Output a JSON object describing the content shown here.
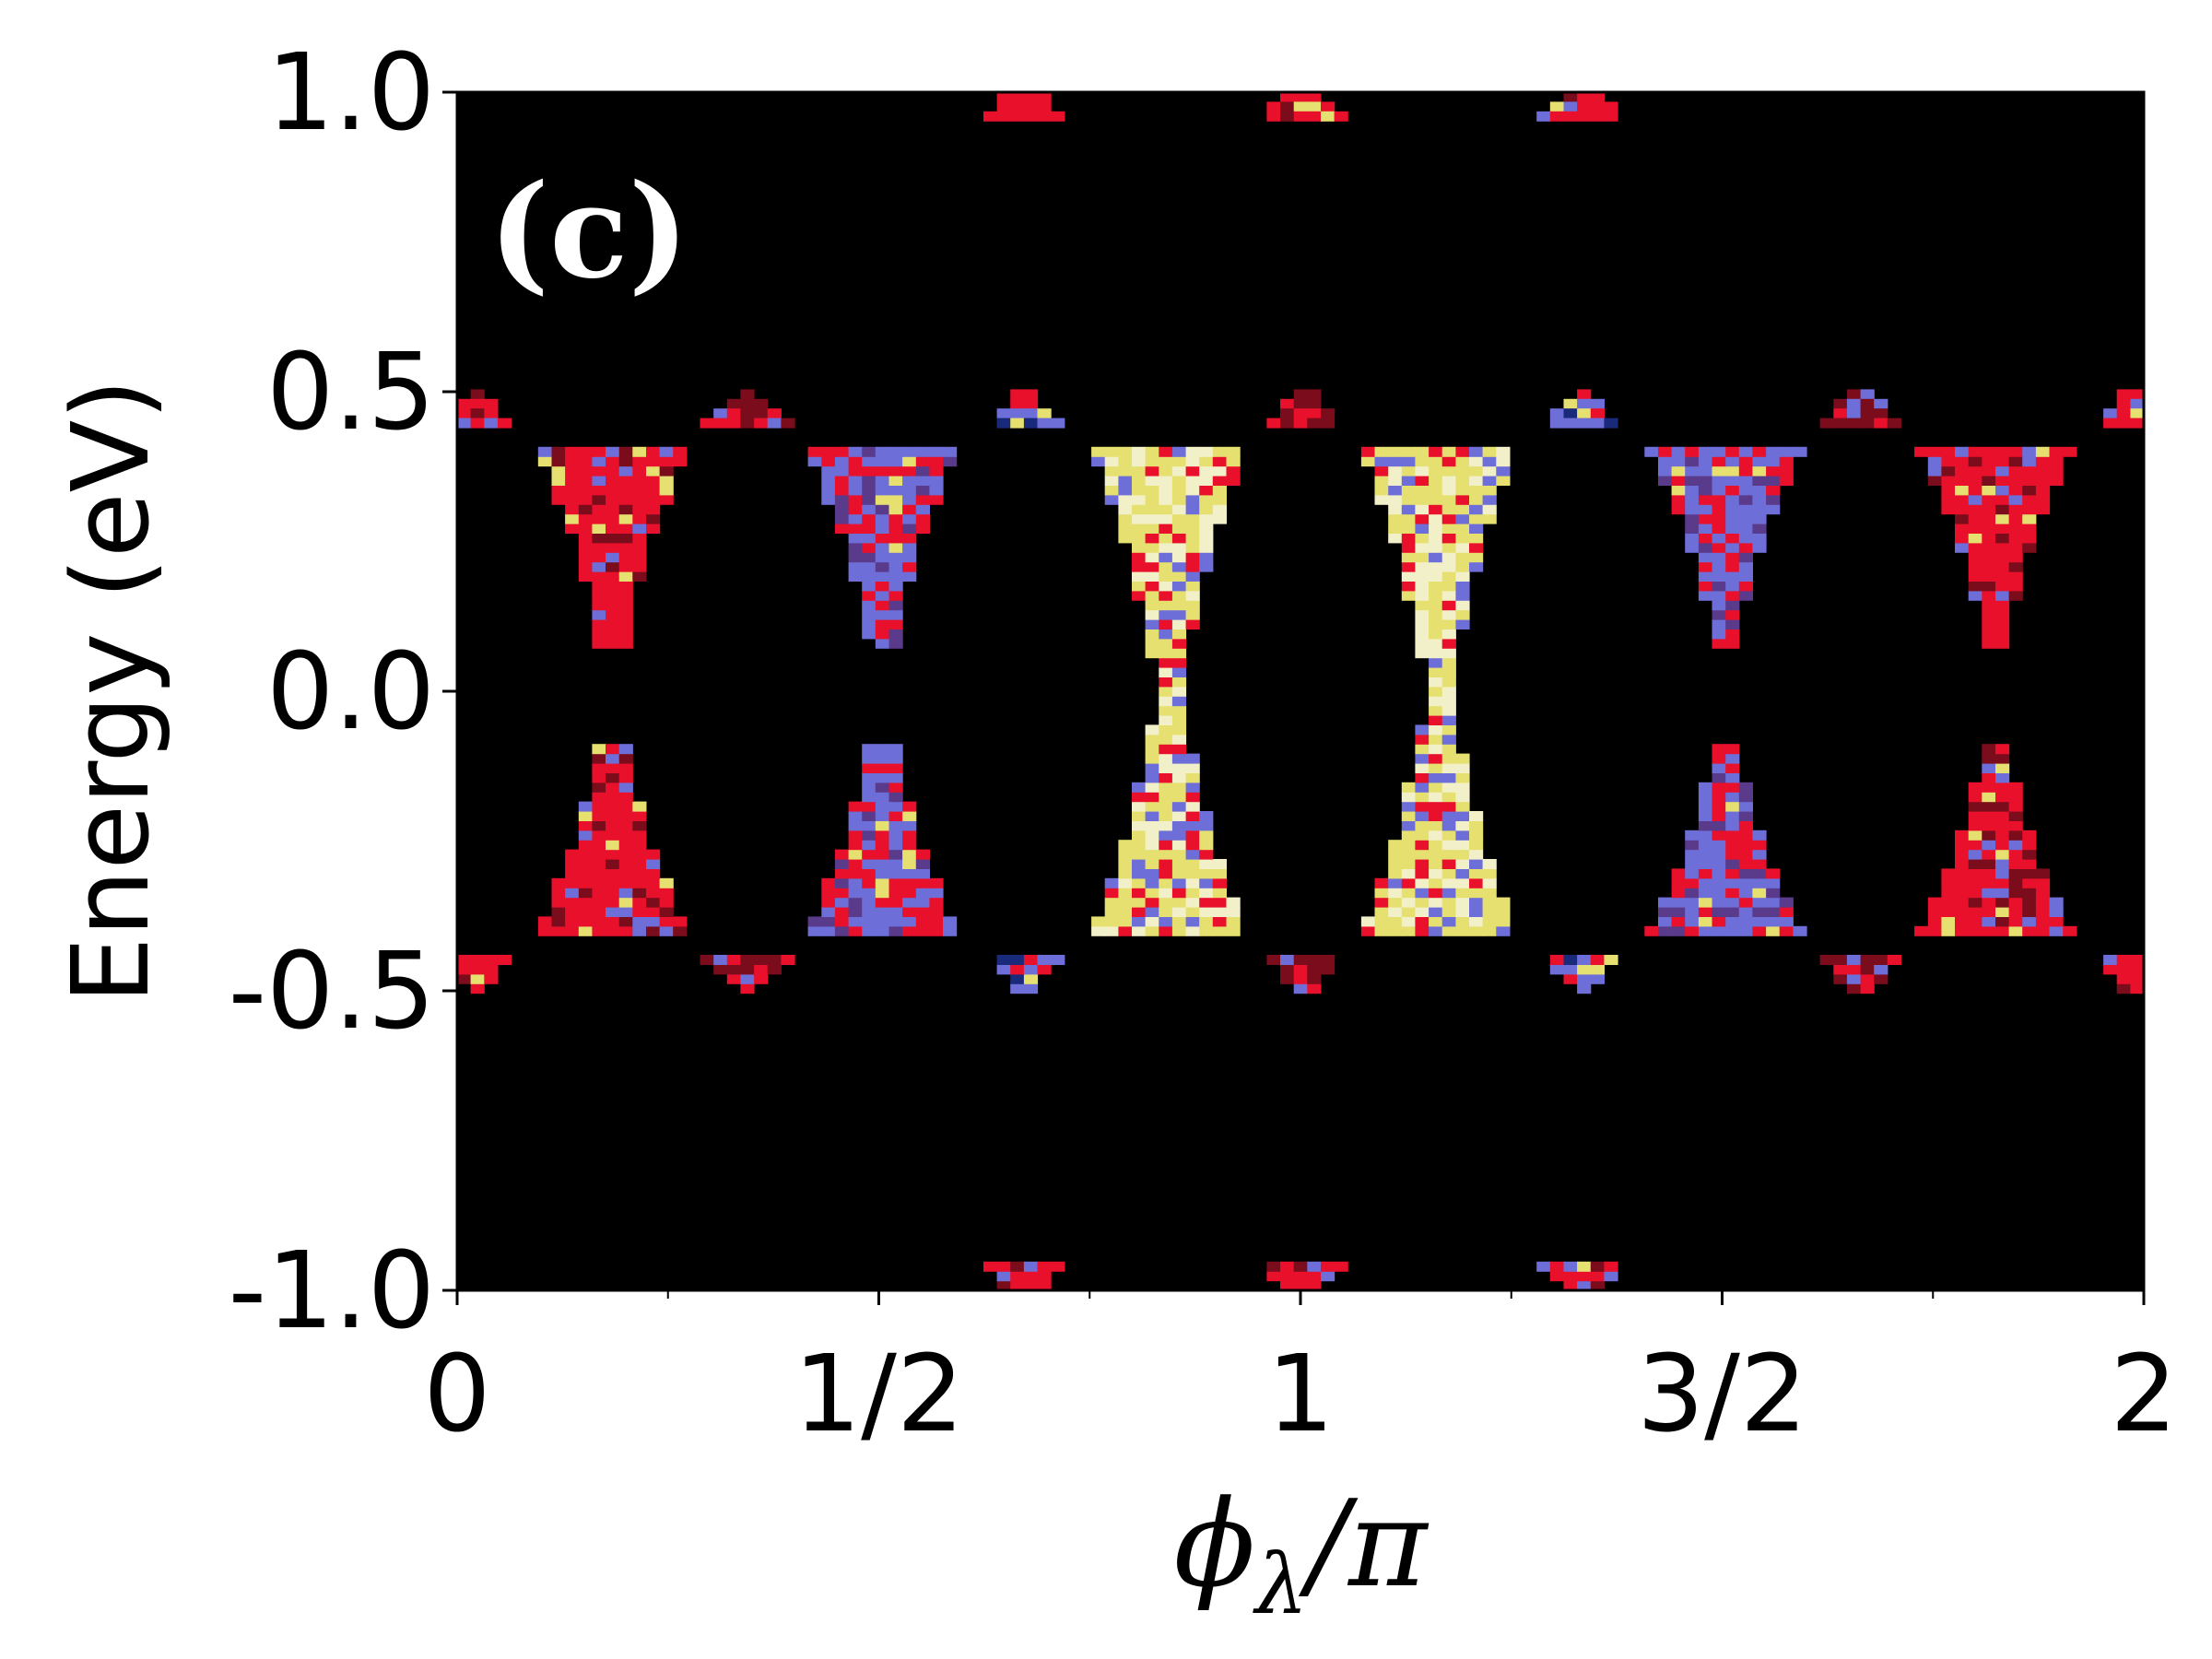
{
  "chart_data": {
    "type": "heatmap",
    "title": "",
    "panel_label": "(c)",
    "xlabel": {
      "symbol": "ϕ",
      "subscript": "λ",
      "suffix": "/π"
    },
    "ylabel": "Energy (eV)",
    "xlim": [
      0,
      2
    ],
    "ylim": [
      -1.0,
      1.0
    ],
    "x_ticks": [
      {
        "value": 0,
        "label": "0"
      },
      {
        "value": 0.5,
        "label": "1/2"
      },
      {
        "value": 1,
        "label": "1"
      },
      {
        "value": 1.5,
        "label": "3/2"
      },
      {
        "value": 2,
        "label": "2"
      }
    ],
    "x_minor_ticks": [
      0.25,
      0.75,
      1.25,
      1.75
    ],
    "y_ticks": [
      {
        "value": 1.0,
        "label": "1.0"
      },
      {
        "value": 0.5,
        "label": "0.5"
      },
      {
        "value": 0.0,
        "label": "0.0"
      },
      {
        "value": -0.5,
        "label": "-0.5"
      },
      {
        "value": -1.0,
        "label": "-1.0"
      }
    ],
    "background_color": "#000000",
    "colors": {
      "red": "#e8102a",
      "blue": "#6e6ed8",
      "yellow": "#e6e070",
      "cream": "#f2f0c8",
      "darkred": "#7a0c1c"
    },
    "features": [
      {
        "kind": "bowtie",
        "x_center": 0.18,
        "e_gap": 0.08,
        "e_outer": 0.4,
        "half_width": 0.085,
        "neck_half_width": 0.012,
        "palette": "red"
      },
      {
        "kind": "bowtie",
        "x_center": 0.5,
        "e_gap": 0.08,
        "e_outer": 0.4,
        "half_width": 0.085,
        "neck_half_width": 0.012,
        "palette": "purple"
      },
      {
        "kind": "bowtie",
        "x_center": 0.84,
        "e_gap": 0.0,
        "e_outer": 0.4,
        "half_width": 0.085,
        "neck_half_width": 0.012,
        "palette": "yellow"
      },
      {
        "kind": "bowtie",
        "x_center": 1.16,
        "e_gap": 0.0,
        "e_outer": 0.4,
        "half_width": 0.085,
        "neck_half_width": 0.012,
        "palette": "yellow"
      },
      {
        "kind": "bowtie",
        "x_center": 1.5,
        "e_gap": 0.08,
        "e_outer": 0.4,
        "half_width": 0.085,
        "neck_half_width": 0.012,
        "palette": "purple"
      },
      {
        "kind": "bowtie",
        "x_center": 1.82,
        "e_gap": 0.08,
        "e_outer": 0.4,
        "half_width": 0.085,
        "neck_half_width": 0.012,
        "palette": "red"
      },
      {
        "kind": "blob",
        "x_center": 0.34,
        "energy": 0.46,
        "half_width": 0.045,
        "palette": "darkred"
      },
      {
        "kind": "blob",
        "x_center": 0.34,
        "energy": -0.46,
        "half_width": 0.045,
        "palette": "darkred"
      },
      {
        "kind": "blob",
        "x_center": 0.67,
        "energy": 0.46,
        "half_width": 0.035,
        "palette": "blue"
      },
      {
        "kind": "blob",
        "x_center": 0.67,
        "energy": -0.46,
        "half_width": 0.035,
        "palette": "blue"
      },
      {
        "kind": "blob",
        "x_center": 1.0,
        "energy": 0.46,
        "half_width": 0.035,
        "palette": "darkred"
      },
      {
        "kind": "blob",
        "x_center": 1.0,
        "energy": -0.46,
        "half_width": 0.035,
        "palette": "darkred"
      },
      {
        "kind": "blob",
        "x_center": 1.33,
        "energy": 0.46,
        "half_width": 0.035,
        "palette": "blue"
      },
      {
        "kind": "blob",
        "x_center": 1.33,
        "energy": -0.46,
        "half_width": 0.035,
        "palette": "blue"
      },
      {
        "kind": "blob",
        "x_center": 1.66,
        "energy": 0.46,
        "half_width": 0.045,
        "palette": "darkred"
      },
      {
        "kind": "blob",
        "x_center": 1.66,
        "energy": -0.46,
        "half_width": 0.045,
        "palette": "darkred"
      },
      {
        "kind": "blob",
        "x_center": 0.02,
        "energy": 0.46,
        "half_width": 0.03,
        "palette": "red"
      },
      {
        "kind": "blob",
        "x_center": 0.02,
        "energy": -0.46,
        "half_width": 0.03,
        "palette": "red"
      },
      {
        "kind": "blob",
        "x_center": 1.98,
        "energy": 0.46,
        "half_width": 0.03,
        "palette": "red"
      },
      {
        "kind": "blob",
        "x_center": 1.98,
        "energy": -0.46,
        "half_width": 0.03,
        "palette": "red"
      },
      {
        "kind": "blob",
        "x_center": 0.67,
        "energy": 0.97,
        "half_width": 0.045,
        "palette": "red"
      },
      {
        "kind": "blob",
        "x_center": 1.0,
        "energy": 0.97,
        "half_width": 0.045,
        "palette": "red"
      },
      {
        "kind": "blob",
        "x_center": 1.33,
        "energy": 0.97,
        "half_width": 0.045,
        "palette": "red"
      },
      {
        "kind": "blob",
        "x_center": 0.67,
        "energy": -0.97,
        "half_width": 0.045,
        "palette": "red"
      },
      {
        "kind": "blob",
        "x_center": 1.0,
        "energy": -0.97,
        "half_width": 0.045,
        "palette": "red"
      },
      {
        "kind": "blob",
        "x_center": 1.33,
        "energy": -0.97,
        "half_width": 0.045,
        "palette": "red"
      }
    ]
  }
}
